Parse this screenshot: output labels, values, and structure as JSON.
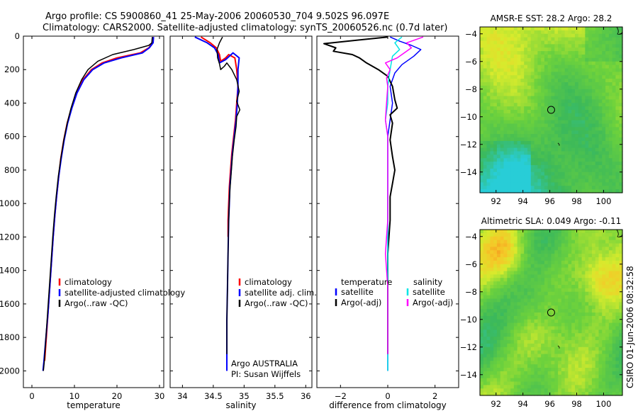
{
  "header": {
    "line1": "Argo profile: CS 5900860_41 25-May-2006 20060530_704 9.502S 96.097E",
    "line2": "Climatology: CARS2000. Satellite-adjusted climatology: synTS_20060526.nc (0.7d later)"
  },
  "side_label": "CSIRO 01-Jun-2006 08:32:58",
  "colors": {
    "climatology": "#ff0000",
    "satellite": "#0000ff",
    "argo": "#000000",
    "cyan": "#00e5e5",
    "magenta": "#ff00ff"
  },
  "chart_data": [
    {
      "id": "temperature",
      "type": "line",
      "xlabel": "temperature",
      "xlim": [
        -2,
        31
      ],
      "ylim": [
        2100,
        0
      ],
      "xticks": [
        0,
        10,
        20,
        30
      ],
      "yticks": [
        0,
        200,
        400,
        600,
        800,
        1000,
        1200,
        1400,
        1600,
        1800,
        2000
      ],
      "legend": [
        "climatology",
        "satellite-adjusted climatology",
        "Argo(..raw -QC)"
      ],
      "series": [
        {
          "name": "climatology",
          "color": "#ff0000",
          "width": 2,
          "points": [
            [
              28.5,
              5
            ],
            [
              28.4,
              40
            ],
            [
              27.5,
              70
            ],
            [
              25.5,
              100
            ],
            [
              20,
              130
            ],
            [
              16.5,
              160
            ],
            [
              14,
              200
            ],
            [
              12,
              260
            ],
            [
              10.5,
              340
            ],
            [
              9.3,
              430
            ],
            [
              8.3,
              520
            ],
            [
              7.5,
              620
            ],
            [
              6.8,
              730
            ],
            [
              6.3,
              840
            ],
            [
              5.8,
              960
            ],
            [
              5.4,
              1070
            ],
            [
              5,
              1200
            ],
            [
              4.6,
              1350
            ],
            [
              4.2,
              1500
            ],
            [
              3.8,
              1650
            ],
            [
              3.4,
              1800
            ],
            [
              3,
              1940
            ]
          ]
        },
        {
          "name": "satellite",
          "color": "#0000ff",
          "width": 2,
          "points": [
            [
              28.6,
              5
            ],
            [
              28.5,
              40
            ],
            [
              27.6,
              70
            ],
            [
              26,
              100
            ],
            [
              21,
              130
            ],
            [
              17,
              160
            ],
            [
              14.3,
              200
            ],
            [
              12.2,
              260
            ],
            [
              10.6,
              340
            ],
            [
              9.4,
              430
            ],
            [
              8.4,
              520
            ],
            [
              7.6,
              620
            ],
            [
              6.9,
              730
            ],
            [
              6.3,
              840
            ],
            [
              5.8,
              960
            ],
            [
              5.4,
              1070
            ],
            [
              5,
              1200
            ],
            [
              4.6,
              1350
            ],
            [
              4.2,
              1500
            ],
            [
              3.8,
              1650
            ],
            [
              3.3,
              1800
            ],
            [
              2.8,
              1950
            ],
            [
              2.6,
              2000
            ]
          ]
        },
        {
          "name": "argo",
          "color": "#000000",
          "width": 1.5,
          "points": [
            [
              28.3,
              5
            ],
            [
              28.2,
              40
            ],
            [
              27.5,
              55
            ],
            [
              24,
              80
            ],
            [
              19,
              110
            ],
            [
              15.5,
              150
            ],
            [
              13.2,
              200
            ],
            [
              11.7,
              260
            ],
            [
              10.3,
              340
            ],
            [
              9.2,
              430
            ],
            [
              8.3,
              520
            ],
            [
              7.5,
              620
            ],
            [
              6.8,
              730
            ],
            [
              6.2,
              840
            ],
            [
              5.7,
              960
            ],
            [
              5.3,
              1070
            ],
            [
              4.9,
              1200
            ],
            [
              4.5,
              1350
            ],
            [
              4.1,
              1500
            ],
            [
              3.7,
              1650
            ],
            [
              3.3,
              1800
            ],
            [
              2.9,
              1950
            ],
            [
              2.7,
              2000
            ]
          ]
        }
      ]
    },
    {
      "id": "salinity",
      "type": "line",
      "xlabel": "salinity",
      "xlim": [
        33.8,
        36.1
      ],
      "ylim": [
        2100,
        0
      ],
      "xticks": [
        34,
        34.5,
        35,
        35.5,
        36
      ],
      "yticks": [
        0,
        200,
        400,
        600,
        800,
        1000,
        1200,
        1400,
        1600,
        1800,
        2000
      ],
      "legend": [
        "climatology",
        "satellite adj. clim.",
        "Argo(..raw -QC)"
      ],
      "annotations": [
        "Argo AUSTRALIA",
        "PI: Susan Wijffels"
      ],
      "series": [
        {
          "name": "climatology",
          "color": "#ff0000",
          "width": 2,
          "points": [
            [
              34.3,
              5
            ],
            [
              34.45,
              40
            ],
            [
              34.55,
              70
            ],
            [
              34.6,
              110
            ],
            [
              34.62,
              150
            ],
            [
              34.7,
              130
            ],
            [
              34.75,
              110
            ],
            [
              34.85,
              130
            ],
            [
              34.88,
              200
            ],
            [
              34.9,
              300
            ],
            [
              34.88,
              400
            ],
            [
              34.86,
              500
            ],
            [
              34.83,
              600
            ],
            [
              34.8,
              700
            ],
            [
              34.78,
              800
            ],
            [
              34.76,
              900
            ],
            [
              34.75,
              1000
            ],
            [
              34.74,
              1100
            ],
            [
              34.74,
              1200
            ]
          ]
        },
        {
          "name": "satellite",
          "color": "#0000ff",
          "width": 2,
          "points": [
            [
              34.2,
              5
            ],
            [
              34.4,
              40
            ],
            [
              34.52,
              70
            ],
            [
              34.58,
              110
            ],
            [
              34.6,
              160
            ],
            [
              34.7,
              140
            ],
            [
              34.82,
              100
            ],
            [
              34.92,
              130
            ],
            [
              34.9,
              200
            ],
            [
              34.9,
              300
            ],
            [
              34.89,
              400
            ],
            [
              34.87,
              500
            ],
            [
              34.84,
              600
            ],
            [
              34.81,
              700
            ],
            [
              34.79,
              800
            ],
            [
              34.77,
              900
            ],
            [
              34.76,
              1000
            ],
            [
              34.75,
              1100
            ],
            [
              34.74,
              1300
            ],
            [
              34.73,
              1500
            ],
            [
              34.72,
              1700
            ],
            [
              34.72,
              1900
            ],
            [
              34.72,
              2000
            ]
          ]
        },
        {
          "name": "argo",
          "color": "#000000",
          "width": 1.5,
          "points": [
            [
              34.65,
              5
            ],
            [
              34.6,
              40
            ],
            [
              34.56,
              80
            ],
            [
              34.57,
              130
            ],
            [
              34.6,
              165
            ],
            [
              34.62,
              200
            ],
            [
              34.68,
              180
            ],
            [
              34.72,
              160
            ],
            [
              34.8,
              200
            ],
            [
              34.88,
              260
            ],
            [
              34.92,
              330
            ],
            [
              34.88,
              390
            ],
            [
              34.93,
              440
            ],
            [
              34.88,
              480
            ],
            [
              34.87,
              540
            ],
            [
              34.84,
              620
            ],
            [
              34.81,
              720
            ],
            [
              34.79,
              820
            ],
            [
              34.77,
              920
            ],
            [
              34.76,
              1000
            ],
            [
              34.75,
              1100
            ],
            [
              34.74,
              1300
            ],
            [
              34.73,
              1500
            ],
            [
              34.72,
              1700
            ],
            [
              34.72,
              1900
            ]
          ]
        }
      ]
    },
    {
      "id": "difference",
      "type": "line",
      "xlabel": "difference from climatology",
      "xlim": [
        -3,
        3
      ],
      "ylim": [
        2100,
        0
      ],
      "xticks": [
        -2,
        0,
        2
      ],
      "yticks": [
        0,
        200,
        400,
        600,
        800,
        1000,
        1200,
        1400,
        1600,
        1800,
        2000
      ],
      "legend": {
        "left_header": "temperature",
        "right_header": "salinity",
        "left": [
          "satellite",
          "Argo(-adj)"
        ],
        "right": [
          "satellite",
          "Argo(-adj)"
        ]
      },
      "series": [
        {
          "name": "temperature satellite",
          "color": "#0000ff",
          "width": 1.5,
          "points": [
            [
              0.1,
              5
            ],
            [
              0.5,
              30
            ],
            [
              1,
              55
            ],
            [
              1.4,
              80
            ],
            [
              1.1,
              120
            ],
            [
              0.6,
              170
            ],
            [
              0.3,
              220
            ],
            [
              0.1,
              300
            ],
            [
              0.2,
              400
            ],
            [
              0.1,
              500
            ],
            [
              0,
              600
            ],
            [
              0,
              800
            ],
            [
              0,
              1000
            ],
            [
              0,
              1200
            ],
            [
              0,
              1500
            ],
            [
              0,
              1800
            ],
            [
              0,
              2000
            ]
          ]
        },
        {
          "name": "temperature Argo(-adj)",
          "color": "#000000",
          "width": 2,
          "points": [
            [
              0,
              5
            ],
            [
              -2.7,
              45
            ],
            [
              -2.2,
              70
            ],
            [
              -2.3,
              90
            ],
            [
              -1.5,
              110
            ],
            [
              -1.2,
              130
            ],
            [
              -0.9,
              160
            ],
            [
              -0.4,
              200
            ],
            [
              0,
              240
            ],
            [
              0.2,
              300
            ],
            [
              0.3,
              380
            ],
            [
              0.4,
              430
            ],
            [
              0.1,
              470
            ],
            [
              0.2,
              520
            ],
            [
              0.1,
              620
            ],
            [
              0.2,
              720
            ],
            [
              0.3,
              800
            ],
            [
              0.2,
              880
            ],
            [
              0.1,
              960
            ],
            [
              0.1,
              1100
            ],
            [
              0,
              1300
            ],
            [
              0,
              1500
            ],
            [
              0,
              1700
            ],
            [
              0,
              1900
            ]
          ]
        },
        {
          "name": "salinity satellite",
          "color": "#00e5e5",
          "width": 1.5,
          "points": [
            [
              0.6,
              5
            ],
            [
              0.3,
              40
            ],
            [
              0.5,
              80
            ],
            [
              0.2,
              120
            ],
            [
              0.1,
              200
            ],
            [
              0,
              300
            ],
            [
              0,
              400
            ],
            [
              -0.1,
              500
            ],
            [
              0,
              600
            ],
            [
              0,
              800
            ],
            [
              0,
              1000
            ],
            [
              0,
              1200
            ],
            [
              0,
              1400
            ],
            [
              0,
              1600
            ],
            [
              0,
              1800
            ],
            [
              0,
              2000
            ]
          ]
        },
        {
          "name": "salinity Argo(-adj)",
          "color": "#ff00ff",
          "width": 1.5,
          "points": [
            [
              1.5,
              5
            ],
            [
              0.8,
              40
            ],
            [
              1,
              70
            ],
            [
              0.7,
              100
            ],
            [
              0.4,
              130
            ],
            [
              -0.1,
              160
            ],
            [
              0.1,
              200
            ],
            [
              -0.05,
              250
            ],
            [
              0,
              300
            ],
            [
              -0.05,
              400
            ],
            [
              -0.1,
              500
            ],
            [
              0,
              600
            ],
            [
              0,
              700
            ],
            [
              0,
              900
            ],
            [
              0,
              1100
            ],
            [
              -0.05,
              1200
            ],
            [
              -0.1,
              1300
            ],
            [
              0,
              1500
            ],
            [
              0,
              1700
            ],
            [
              0,
              1900
            ]
          ]
        }
      ]
    },
    {
      "id": "sst_map",
      "type": "heatmap",
      "title": "AMSR-E SST: 28.2 Argo: 28.2",
      "xlim": [
        90.8,
        101.4
      ],
      "ylim": [
        -15.5,
        -3.5
      ],
      "xticks": [
        92,
        94,
        96,
        98,
        100
      ],
      "yticks": [
        -4,
        -6,
        -8,
        -10,
        -12,
        -14
      ],
      "marker": {
        "lon": 96.097,
        "lat": -9.502
      }
    },
    {
      "id": "sla_map",
      "type": "heatmap",
      "title": "Altimetric SLA: 0.049 Argo: -0.11",
      "xlim": [
        90.8,
        101.4
      ],
      "ylim": [
        -15.5,
        -3.5
      ],
      "xticks": [
        92,
        94,
        96,
        98,
        100
      ],
      "yticks": [
        -4,
        -6,
        -8,
        -10,
        -12,
        -14
      ],
      "marker": {
        "lon": 96.097,
        "lat": -9.502
      }
    }
  ]
}
